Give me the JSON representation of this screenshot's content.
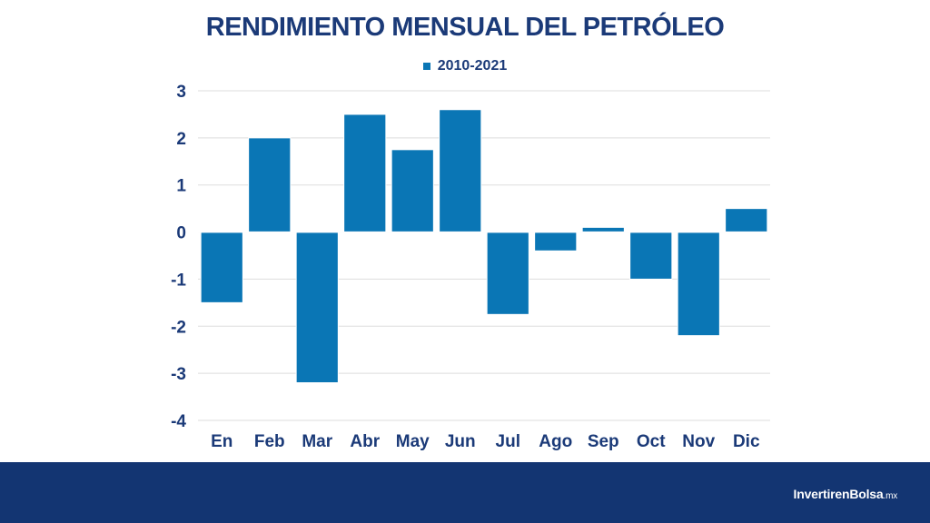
{
  "title": "RENDIMIENTO MENSUAL DEL PETRÓLEO",
  "colors": {
    "bar": "#0a76b5",
    "title": "#1b3a78",
    "footer": "#133572",
    "grid": "#dedede"
  },
  "footer": {
    "brand_main": "InvertirenBolsa",
    "brand_suffix": ".mx"
  },
  "chart_data": {
    "type": "bar",
    "title": "RENDIMIENTO MENSUAL DEL PETRÓLEO",
    "categories": [
      "En",
      "Feb",
      "Mar",
      "Abr",
      "May",
      "Jun",
      "Jul",
      "Ago",
      "Sep",
      "Oct",
      "Nov",
      "Dic"
    ],
    "series": [
      {
        "name": "2010-2021",
        "values": [
          -1.5,
          2.0,
          -3.2,
          2.5,
          1.75,
          2.6,
          -1.75,
          -0.4,
          0.1,
          -1.0,
          -2.2,
          0.5
        ]
      }
    ],
    "yticks": [
      3,
      2,
      1,
      0,
      -1,
      -2,
      -3,
      -4
    ],
    "ylim": [
      -4,
      3
    ],
    "grid": true,
    "legend": "top"
  }
}
